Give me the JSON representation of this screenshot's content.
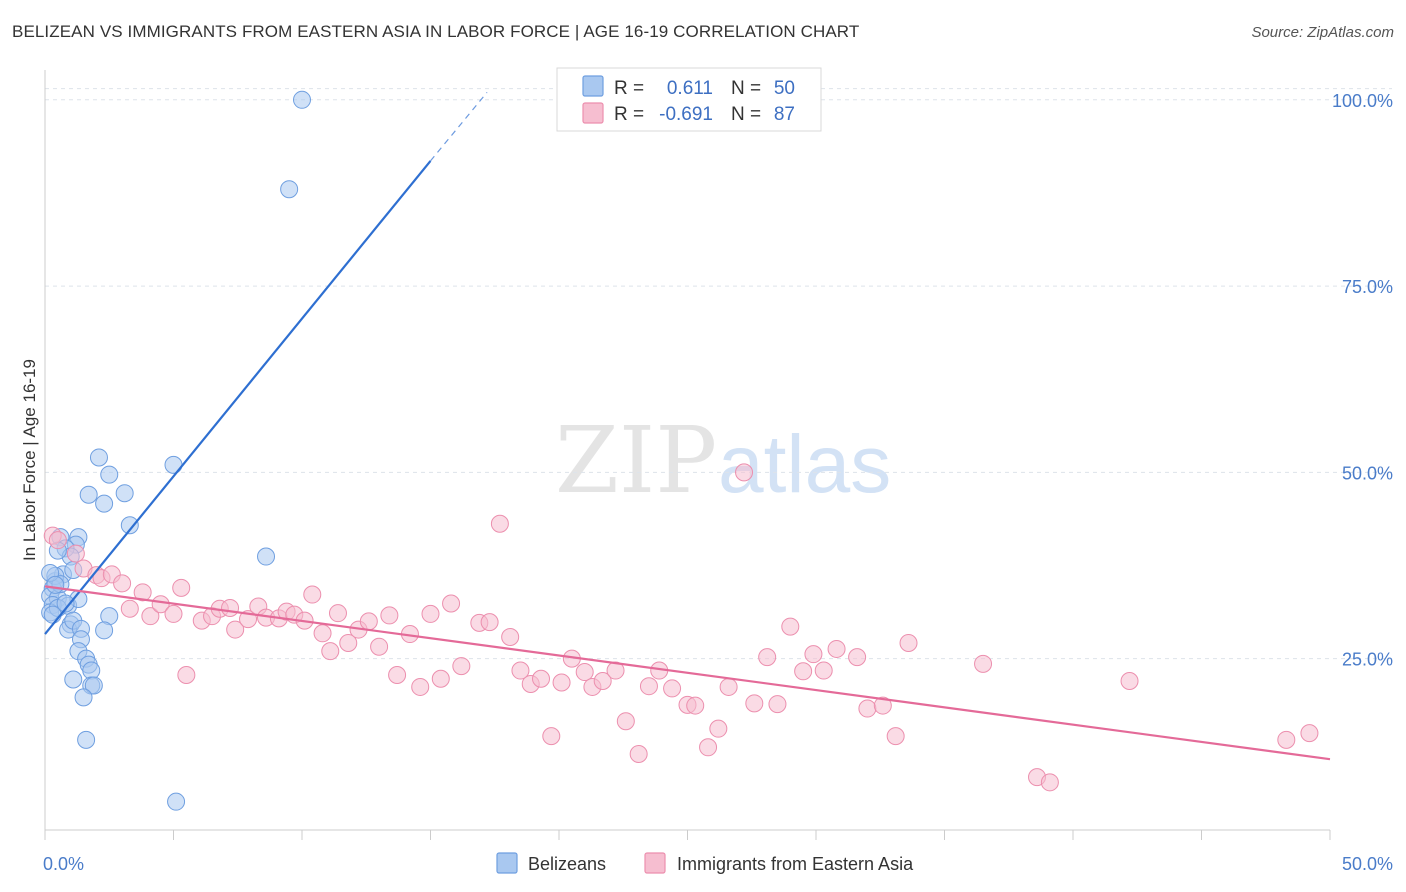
{
  "title": "BELIZEAN VS IMMIGRANTS FROM EASTERN ASIA IN LABOR FORCE | AGE 16-19 CORRELATION CHART",
  "source": "Source: ZipAtlas.com",
  "watermark": {
    "zip": "ZIP",
    "atlas": "atlas"
  },
  "colors": {
    "blue_fill": "#a9c8f0",
    "blue_stroke": "#6f9fe0",
    "blue_line": "#2e6fd1",
    "pink_fill": "#f6bed0",
    "pink_stroke": "#ec8fae",
    "pink_line": "#e46a98",
    "grid": "#dde3ea",
    "tick_text": "#4a7cc9"
  },
  "legend_top": [
    {
      "r_label": "R =",
      "r_value": "0.611",
      "n_label": "N =",
      "n_value": "50",
      "color": "blue"
    },
    {
      "r_label": "R =",
      "r_value": "-0.691",
      "n_label": "N =",
      "n_value": "87",
      "color": "pink"
    }
  ],
  "chart_data": {
    "type": "scatter",
    "xlabel": "",
    "ylabel": "In Labor Force | Age 16-19",
    "xlim": [
      0,
      50
    ],
    "ylim": [
      2,
      104
    ],
    "x_tick_labels": [
      {
        "value": 0,
        "label": "0.0%"
      },
      {
        "value": 50,
        "label": "50.0%"
      }
    ],
    "y_tick_labels": [
      {
        "value": 25,
        "label": "25.0%"
      },
      {
        "value": 50,
        "label": "50.0%"
      },
      {
        "value": 75,
        "label": "75.0%"
      },
      {
        "value": 100,
        "label": "100.0%"
      }
    ],
    "grid": true,
    "legend_position": "bottom-center",
    "series": [
      {
        "name": "Belizeans",
        "color": "blue",
        "trend": {
          "x0": 0,
          "y0": 28.3,
          "x1": 15,
          "y1": 91.8,
          "dash_to_x": 17.2,
          "dash_to_y": 101
        },
        "points": [
          [
            10,
            100
          ],
          [
            9.5,
            88
          ],
          [
            5,
            51
          ],
          [
            2.1,
            52
          ],
          [
            2.5,
            49.7
          ],
          [
            1.7,
            47
          ],
          [
            3.1,
            47.2
          ],
          [
            2.3,
            45.8
          ],
          [
            3.3,
            42.9
          ],
          [
            8.6,
            38.7
          ],
          [
            1.3,
            41.3
          ],
          [
            1.2,
            40.3
          ],
          [
            0.6,
            41.3
          ],
          [
            0.8,
            39.8
          ],
          [
            1.0,
            38.7
          ],
          [
            0.5,
            39.5
          ],
          [
            0.4,
            35.4
          ],
          [
            0.3,
            34.4
          ],
          [
            0.7,
            36.3
          ],
          [
            1.1,
            36.9
          ],
          [
            0.2,
            33.4
          ],
          [
            0.5,
            33.1
          ],
          [
            0.9,
            32.1
          ],
          [
            1.3,
            33.0
          ],
          [
            0.3,
            32.2
          ],
          [
            0.2,
            31.2
          ],
          [
            0.5,
            31.8
          ],
          [
            0.8,
            32.4
          ],
          [
            1.0,
            29.6
          ],
          [
            0.9,
            28.9
          ],
          [
            1.1,
            30.1
          ],
          [
            1.4,
            29.0
          ],
          [
            2.5,
            30.7
          ],
          [
            2.3,
            28.8
          ],
          [
            1.4,
            27.6
          ],
          [
            1.3,
            26.0
          ],
          [
            1.6,
            25.0
          ],
          [
            1.7,
            24.2
          ],
          [
            1.8,
            23.4
          ],
          [
            1.1,
            22.2
          ],
          [
            1.8,
            21.4
          ],
          [
            1.9,
            21.4
          ],
          [
            1.5,
            19.8
          ],
          [
            1.6,
            14.1
          ],
          [
            5.1,
            5.8
          ],
          [
            0.4,
            36.1
          ],
          [
            0.6,
            35.0
          ],
          [
            0.2,
            36.5
          ],
          [
            0.3,
            30.9
          ],
          [
            0.4,
            34.9
          ]
        ]
      },
      {
        "name": "Immigrants from Eastern Asia",
        "color": "pink",
        "trend": {
          "x0": 0,
          "y0": 34.7,
          "x1": 50,
          "y1": 11.5
        },
        "points": [
          [
            0.3,
            41.5
          ],
          [
            0.5,
            40.9
          ],
          [
            1.2,
            39.1
          ],
          [
            1.5,
            37.1
          ],
          [
            2.0,
            36.2
          ],
          [
            2.2,
            35.8
          ],
          [
            2.6,
            36.3
          ],
          [
            3.0,
            35.1
          ],
          [
            3.3,
            31.7
          ],
          [
            3.8,
            33.9
          ],
          [
            4.1,
            30.7
          ],
          [
            4.5,
            32.3
          ],
          [
            5.0,
            31.0
          ],
          [
            5.3,
            34.5
          ],
          [
            5.5,
            22.8
          ],
          [
            6.1,
            30.1
          ],
          [
            6.5,
            30.7
          ],
          [
            6.8,
            31.7
          ],
          [
            7.2,
            31.8
          ],
          [
            7.4,
            28.9
          ],
          [
            7.9,
            30.3
          ],
          [
            8.3,
            32.0
          ],
          [
            8.6,
            30.5
          ],
          [
            9.1,
            30.4
          ],
          [
            9.4,
            31.3
          ],
          [
            9.7,
            30.9
          ],
          [
            10.1,
            30.1
          ],
          [
            10.4,
            33.6
          ],
          [
            10.8,
            28.4
          ],
          [
            11.1,
            26.0
          ],
          [
            11.4,
            31.1
          ],
          [
            11.8,
            27.1
          ],
          [
            12.2,
            28.9
          ],
          [
            12.6,
            30.0
          ],
          [
            13.0,
            26.6
          ],
          [
            13.4,
            30.8
          ],
          [
            13.7,
            22.8
          ],
          [
            14.2,
            28.3
          ],
          [
            14.6,
            21.2
          ],
          [
            15.0,
            31.0
          ],
          [
            15.4,
            22.3
          ],
          [
            15.8,
            32.4
          ],
          [
            16.2,
            24.0
          ],
          [
            16.9,
            29.8
          ],
          [
            17.3,
            29.9
          ],
          [
            17.7,
            43.1
          ],
          [
            18.1,
            27.9
          ],
          [
            18.5,
            23.4
          ],
          [
            18.9,
            21.6
          ],
          [
            19.3,
            22.3
          ],
          [
            19.7,
            14.6
          ],
          [
            20.1,
            21.8
          ],
          [
            20.5,
            25.0
          ],
          [
            21.0,
            23.2
          ],
          [
            21.3,
            21.2
          ],
          [
            21.7,
            22.0
          ],
          [
            22.2,
            23.4
          ],
          [
            22.6,
            16.6
          ],
          [
            23.1,
            12.2
          ],
          [
            23.5,
            21.3
          ],
          [
            23.9,
            23.4
          ],
          [
            24.4,
            21.0
          ],
          [
            25.0,
            18.8
          ],
          [
            25.3,
            18.7
          ],
          [
            25.8,
            13.1
          ],
          [
            26.2,
            15.6
          ],
          [
            26.6,
            21.2
          ],
          [
            27.2,
            50.0
          ],
          [
            27.6,
            19.0
          ],
          [
            28.1,
            25.2
          ],
          [
            28.5,
            18.9
          ],
          [
            29.0,
            29.3
          ],
          [
            29.5,
            23.3
          ],
          [
            29.9,
            25.6
          ],
          [
            30.3,
            23.4
          ],
          [
            30.8,
            26.3
          ],
          [
            31.6,
            25.2
          ],
          [
            32.0,
            18.3
          ],
          [
            32.6,
            18.7
          ],
          [
            33.1,
            14.6
          ],
          [
            33.6,
            27.1
          ],
          [
            36.5,
            24.3
          ],
          [
            38.6,
            9.1
          ],
          [
            39.1,
            8.4
          ],
          [
            42.2,
            22.0
          ],
          [
            48.3,
            14.1
          ],
          [
            49.2,
            15.0
          ]
        ]
      }
    ]
  },
  "bottom_legend": [
    {
      "label": "Belizeans",
      "color": "blue"
    },
    {
      "label": "Immigrants from Eastern Asia",
      "color": "pink"
    }
  ]
}
